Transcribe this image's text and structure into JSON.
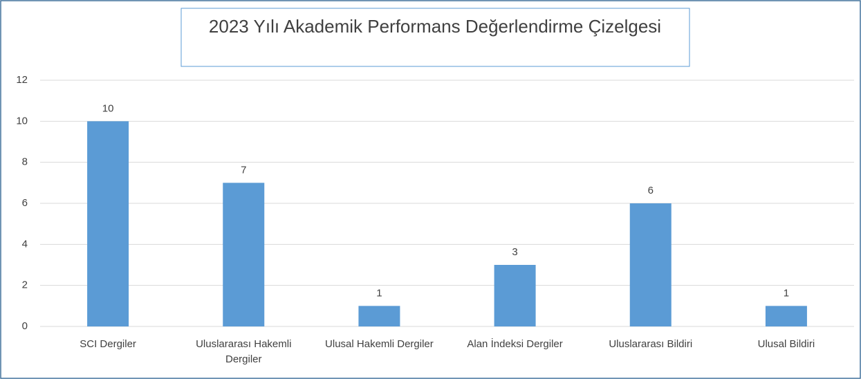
{
  "chart_data": {
    "type": "bar",
    "title": "2023 Yılı Akademik Performans Değerlendirme Çizelgesi",
    "categories": [
      "SCI Dergiler",
      "Uluslararası Hakemli Dergiler",
      "Ulusal Hakemli Dergiler",
      "Alan İndeksi Dergiler",
      "Uluslararası Bildiri",
      "Ulusal Bildiri"
    ],
    "values": [
      10,
      7,
      1,
      3,
      6,
      1
    ],
    "color": "#5b9bd5",
    "ylim": [
      0,
      12
    ],
    "yticks": [
      0,
      2,
      4,
      6,
      8,
      10,
      12
    ],
    "grid": true,
    "data_labels": true
  }
}
